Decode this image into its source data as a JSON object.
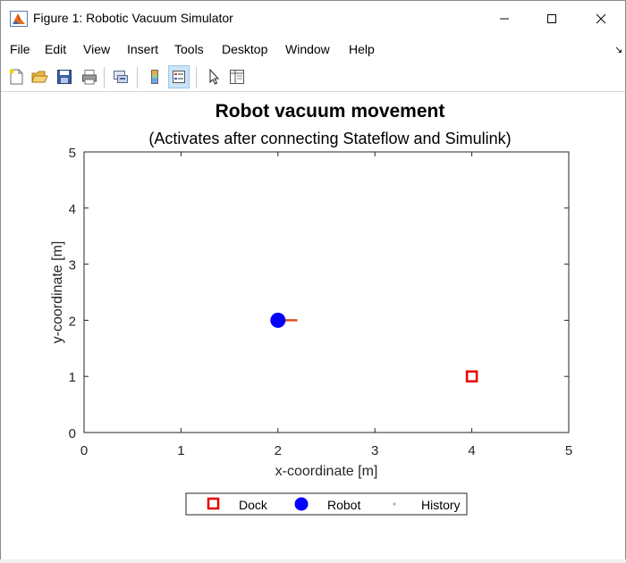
{
  "window": {
    "title": "Figure 1: Robotic Vacuum Simulator",
    "minimize_icon": "minimize-icon",
    "maximize_icon": "maximize-icon",
    "close_icon": "close-icon"
  },
  "menu": {
    "items": [
      "File",
      "Edit",
      "View",
      "Insert",
      "Tools",
      "Desktop",
      "Window",
      "Help"
    ],
    "dock_icon": "dock-arrow-icon"
  },
  "toolbar": {
    "buttons": [
      {
        "icon": "new-figure-icon"
      },
      {
        "icon": "open-file-icon"
      },
      {
        "icon": "save-icon"
      },
      {
        "icon": "print-icon"
      },
      {
        "icon": "link-plot-icon"
      },
      {
        "icon": "insert-colorbar-icon"
      },
      {
        "icon": "insert-legend-icon",
        "selected": true
      },
      {
        "icon": "edit-plot-arrow-icon"
      },
      {
        "icon": "property-inspector-icon"
      }
    ]
  },
  "chart_data": {
    "type": "scatter",
    "title": "Robot vacuum movement",
    "subtitle": "(Activates after connecting Stateflow and Simulink)",
    "xlabel": "x-coordinate [m]",
    "ylabel": "y-coordinate [m]",
    "xlim": [
      0,
      5
    ],
    "ylim": [
      0,
      5
    ],
    "xticks": [
      "0",
      "1",
      "2",
      "3",
      "4",
      "5"
    ],
    "yticks": [
      "0",
      "1",
      "2",
      "3",
      "4",
      "5"
    ],
    "grid": false,
    "legend_position": "bottom-outside",
    "series": [
      {
        "name": "Dock",
        "marker": "square",
        "color": "#e60000",
        "x": [
          4
        ],
        "y": [
          1
        ]
      },
      {
        "name": "Robot",
        "marker": "circle",
        "color": "#0000ff",
        "x": [
          2
        ],
        "y": [
          2
        ],
        "heading_line": {
          "x": [
            2,
            2.2
          ],
          "y": [
            2,
            2
          ],
          "color": "#d95319"
        }
      },
      {
        "name": "History",
        "marker": "dot",
        "color": "#c0c0c0",
        "x": [],
        "y": []
      }
    ]
  }
}
